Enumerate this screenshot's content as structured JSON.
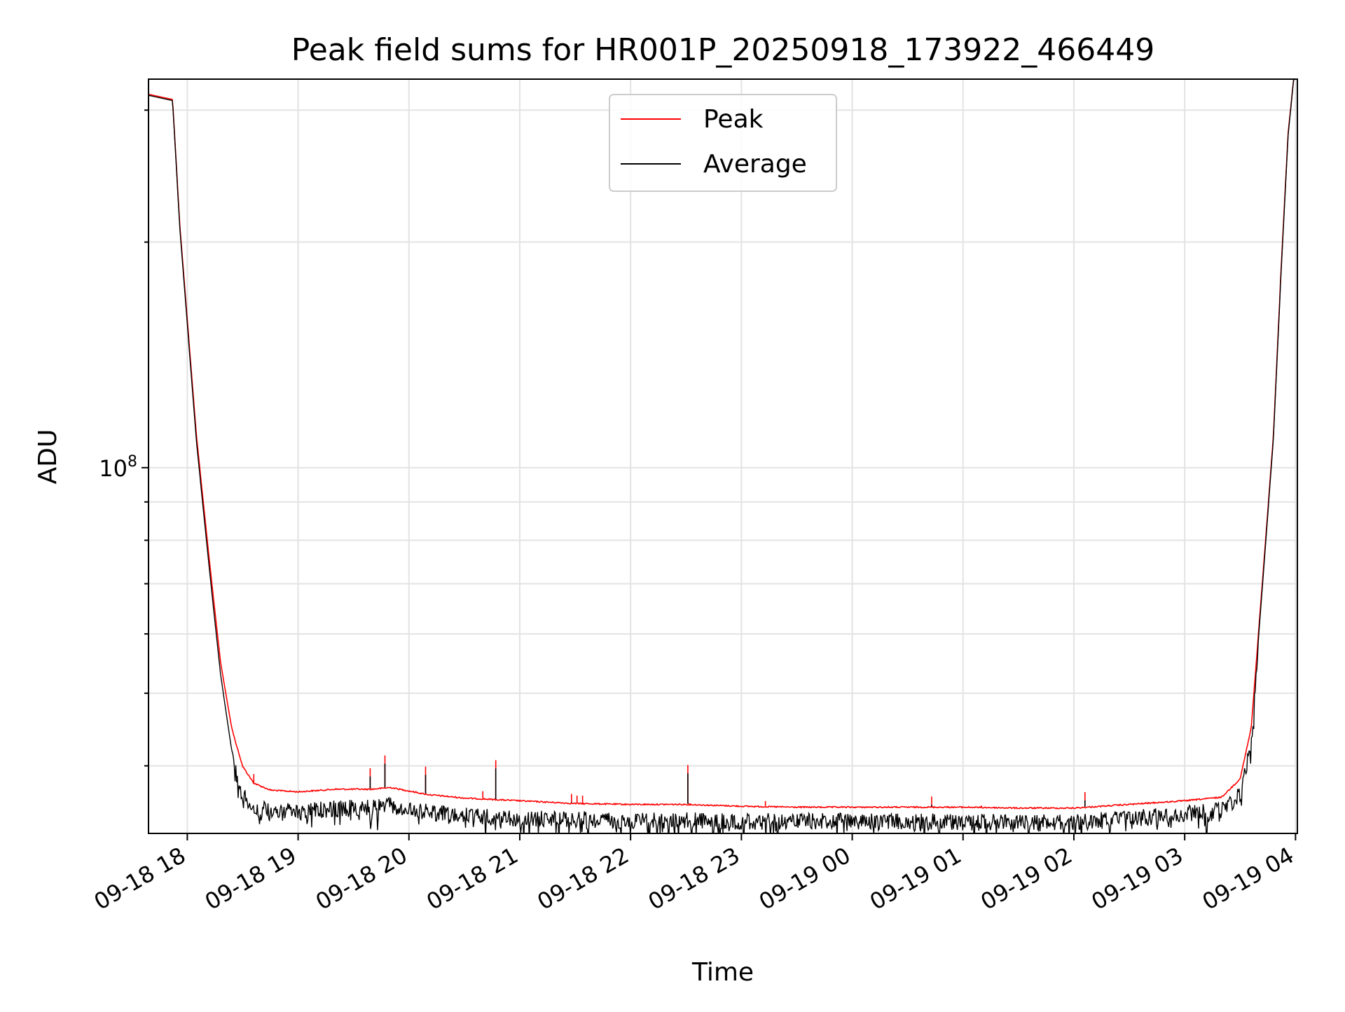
{
  "chart_data": {
    "type": "line",
    "title": "Peak field sums for HR001P_20250918_173922_466449",
    "xlabel": "Time",
    "ylabel": "ADU",
    "x_ticks": [
      "09-18 18",
      "09-18 19",
      "09-18 20",
      "09-18 21",
      "09-18 22",
      "09-18 23",
      "09-19 00",
      "09-19 01",
      "09-19 02",
      "09-19 03",
      "09-19 04"
    ],
    "x_range": [
      "2025-09-18 17:39",
      "2025-09-19 04:01"
    ],
    "y_scale": "log",
    "y_range": [
      32500000,
      330000000
    ],
    "y_major_tick": {
      "value": 100000000,
      "label_base": "10",
      "label_exp": "8"
    },
    "y_minor_ticks": [
      40000000,
      50000000,
      60000000,
      70000000,
      80000000,
      90000000,
      200000000,
      300000000
    ],
    "grid": true,
    "legend": {
      "position": "upper center",
      "entries": [
        "Peak",
        "Average"
      ]
    },
    "series": [
      {
        "name": "Peak",
        "color": "#ff0000",
        "points": [
          [
            "2025-09-18 17:39",
            315000000
          ],
          [
            "2025-09-18 17:52",
            310000000
          ],
          [
            "2025-09-18 17:56",
            210000000
          ],
          [
            "2025-09-18 18:05",
            110000000
          ],
          [
            "2025-09-18 18:12",
            75000000
          ],
          [
            "2025-09-18 18:18",
            55000000
          ],
          [
            "2025-09-18 18:24",
            45000000
          ],
          [
            "2025-09-18 18:30",
            40000000
          ],
          [
            "2025-09-18 18:36",
            38000000
          ],
          [
            "2025-09-18 18:45",
            37200000
          ],
          [
            "2025-09-18 19:00",
            37000000
          ],
          [
            "2025-09-18 19:20",
            37300000
          ],
          [
            "2025-09-18 19:40",
            37300000
          ],
          [
            "2025-09-18 19:50",
            37500000
          ],
          [
            "2025-09-18 20:10",
            36700000
          ],
          [
            "2025-09-18 20:30",
            36300000
          ],
          [
            "2025-09-18 21:00",
            36000000
          ],
          [
            "2025-09-18 21:30",
            35700000
          ],
          [
            "2025-09-18 22:00",
            35600000
          ],
          [
            "2025-09-18 22:30",
            35600000
          ],
          [
            "2025-09-18 23:00",
            35400000
          ],
          [
            "2025-09-18 23:30",
            35300000
          ],
          [
            "2025-09-19 00:00",
            35300000
          ],
          [
            "2025-09-19 00:30",
            35300000
          ],
          [
            "2025-09-19 01:00",
            35300000
          ],
          [
            "2025-09-19 01:30",
            35200000
          ],
          [
            "2025-09-19 02:00",
            35200000
          ],
          [
            "2025-09-19 02:30",
            35600000
          ],
          [
            "2025-09-19 03:00",
            36000000
          ],
          [
            "2025-09-19 03:20",
            36400000
          ],
          [
            "2025-09-19 03:30",
            38500000
          ],
          [
            "2025-09-19 03:36",
            45000000
          ],
          [
            "2025-09-19 03:42",
            70000000
          ],
          [
            "2025-09-19 03:48",
            110000000
          ],
          [
            "2025-09-19 03:52",
            180000000
          ],
          [
            "2025-09-19 03:56",
            280000000
          ],
          [
            "2025-09-19 03:59",
            330000000
          ]
        ]
      },
      {
        "name": "Average",
        "color": "#000000",
        "points": [
          [
            "2025-09-18 17:39",
            314000000
          ],
          [
            "2025-09-18 17:52",
            309000000
          ],
          [
            "2025-09-18 17:56",
            208000000
          ],
          [
            "2025-09-18 18:05",
            108000000
          ],
          [
            "2025-09-18 18:12",
            73000000
          ],
          [
            "2025-09-18 18:18",
            53000000
          ],
          [
            "2025-09-18 18:24",
            42000000
          ],
          [
            "2025-09-18 18:30",
            37500000
          ],
          [
            "2025-09-18 18:36",
            36000000
          ],
          [
            "2025-09-18 18:45",
            35800000
          ],
          [
            "2025-09-18 19:00",
            35600000
          ],
          [
            "2025-09-18 19:20",
            36000000
          ],
          [
            "2025-09-18 19:40",
            36100000
          ],
          [
            "2025-09-18 19:50",
            36300000
          ],
          [
            "2025-09-18 20:10",
            35600000
          ],
          [
            "2025-09-18 20:30",
            35200000
          ],
          [
            "2025-09-18 21:00",
            34900000
          ],
          [
            "2025-09-18 21:30",
            34800000
          ],
          [
            "2025-09-18 22:00",
            34700000
          ],
          [
            "2025-09-18 22:30",
            34700000
          ],
          [
            "2025-09-18 23:00",
            34600000
          ],
          [
            "2025-09-18 23:30",
            34600000
          ],
          [
            "2025-09-19 00:00",
            34600000
          ],
          [
            "2025-09-19 00:30",
            34600000
          ],
          [
            "2025-09-19 01:00",
            34500000
          ],
          [
            "2025-09-19 01:30",
            34500000
          ],
          [
            "2025-09-19 02:00",
            34500000
          ],
          [
            "2025-09-19 02:30",
            34900000
          ],
          [
            "2025-09-19 03:00",
            35400000
          ],
          [
            "2025-09-19 03:20",
            35800000
          ],
          [
            "2025-09-19 03:30",
            37500000
          ],
          [
            "2025-09-19 03:36",
            44000000
          ],
          [
            "2025-09-19 03:42",
            69000000
          ],
          [
            "2025-09-19 03:48",
            109000000
          ],
          [
            "2025-09-19 03:52",
            178000000
          ],
          [
            "2025-09-19 03:56",
            278000000
          ],
          [
            "2025-09-19 03:59",
            330000000
          ]
        ]
      }
    ],
    "peak_spikes": [
      [
        "2025-09-18 18:36",
        39000000
      ],
      [
        "2025-09-18 19:39",
        39700000
      ],
      [
        "2025-09-18 19:47",
        41300000
      ],
      [
        "2025-09-18 19:58",
        37200000
      ],
      [
        "2025-09-18 20:09",
        39900000
      ],
      [
        "2025-09-18 20:40",
        37000000
      ],
      [
        "2025-09-18 20:47",
        40700000
      ],
      [
        "2025-09-18 21:28",
        36700000
      ],
      [
        "2025-09-18 21:31",
        36500000
      ],
      [
        "2025-09-18 21:34",
        36500000
      ],
      [
        "2025-09-18 22:31",
        40100000
      ],
      [
        "2025-09-18 23:13",
        35900000
      ],
      [
        "2025-09-19 00:43",
        36400000
      ],
      [
        "2025-09-19 01:10",
        35400000
      ],
      [
        "2025-09-19 02:06",
        36900000
      ]
    ]
  }
}
